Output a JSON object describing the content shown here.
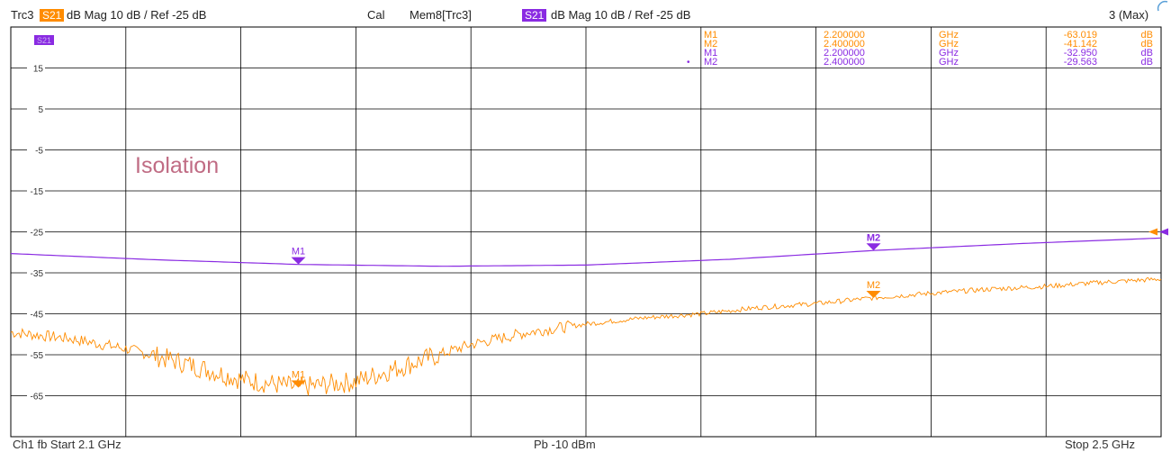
{
  "header": {
    "trace_label": "Trc3",
    "trace_param": "S21",
    "trace_format": "dB Mag  10 dB /  Ref -25 dB",
    "cal_label": "Cal",
    "mem_label": "Mem8[Trc3]",
    "mem_param": "S21",
    "mem_format": "dB Mag  10 dB /  Ref -25 dB",
    "max_label": "3 (Max)"
  },
  "footer": {
    "start": "Ch1  fb  Start  2.1 GHz",
    "power": "Pb   -10 dBm",
    "stop": "Stop  2.5 GHz"
  },
  "colors": {
    "trc3": "#FF8C00",
    "mem": "#8A2BE2",
    "grid": "#000000",
    "annotation": "#C06C84"
  },
  "chart_data": {
    "type": "line",
    "title": "",
    "annotation": "Isolation",
    "trace_tag": "S21",
    "xlabel": "",
    "ylabel": "",
    "x_unit": "GHz",
    "xlim": [
      2.1,
      2.5
    ],
    "ylim": [
      -75,
      25
    ],
    "y_ticks": [
      15,
      5,
      -5,
      -15,
      -25,
      -35,
      -45,
      -55,
      -65
    ],
    "y_tick_labels": [
      "15",
      "5",
      "-5",
      "-15",
      "-25",
      "-35",
      "-45",
      "-55",
      "-65"
    ],
    "grid": true,
    "x_divisions": 10,
    "y_divisions": 10,
    "series": [
      {
        "id": "trc3",
        "color": "orange",
        "noisy": true,
        "x": [
          2.1,
          2.12,
          2.14,
          2.16,
          2.18,
          2.2,
          2.22,
          2.24,
          2.26,
          2.28,
          2.3,
          2.32,
          2.34,
          2.36,
          2.38,
          2.4,
          2.42,
          2.44,
          2.46,
          2.48,
          2.5
        ],
        "y": [
          -49.5,
          -51,
          -53.5,
          -57,
          -61,
          -63,
          -61.5,
          -57,
          -52.5,
          -49.5,
          -47.5,
          -46,
          -45,
          -43.5,
          -42.5,
          -41.1,
          -40,
          -39,
          -38.3,
          -37.3,
          -36.5
        ]
      },
      {
        "id": "mem",
        "color": "purple",
        "noisy": false,
        "x": [
          2.1,
          2.15,
          2.2,
          2.25,
          2.3,
          2.35,
          2.4,
          2.45,
          2.5
        ],
        "y": [
          -30.3,
          -31.8,
          -32.95,
          -33.4,
          -33.1,
          -31.7,
          -29.56,
          -27.9,
          -26.5
        ]
      }
    ],
    "markers": [
      {
        "label": "M1",
        "series": "mem",
        "x": 2.2,
        "y": -32.95
      },
      {
        "label": "M2",
        "series": "mem",
        "x": 2.4,
        "y": -29.563
      },
      {
        "label": "M1",
        "series": "trc3",
        "x": 2.2,
        "y": -63.019
      },
      {
        "label": "M2",
        "series": "trc3",
        "x": 2.4,
        "y": -41.142
      }
    ],
    "marker_table": [
      {
        "name": "M1",
        "freq": "2.200000",
        "unit": "GHz",
        "value": "-63.019",
        "db": "dB",
        "color": "orange",
        "active": false
      },
      {
        "name": "M2",
        "freq": "2.400000",
        "unit": "GHz",
        "value": "-41.142",
        "db": "dB",
        "color": "orange",
        "active": false
      },
      {
        "name": "M1",
        "freq": "2.200000",
        "unit": "GHz",
        "value": "-32.950",
        "db": "dB",
        "color": "purple",
        "active": false
      },
      {
        "name": "M2",
        "freq": "2.400000",
        "unit": "GHz",
        "value": "-29.563",
        "db": "dB",
        "color": "purple",
        "active": true
      }
    ]
  }
}
